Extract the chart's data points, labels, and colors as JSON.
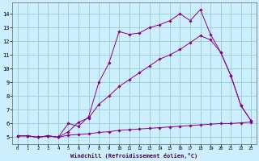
{
  "xlabel": "Windchill (Refroidissement éolien,°C)",
  "bg_color": "#cceeff",
  "line_color": "#880088",
  "grid_color": "#99cccc",
  "xlim": [
    -0.5,
    23.5
  ],
  "ylim": [
    4.5,
    14.8
  ],
  "xticks": [
    0,
    1,
    2,
    3,
    4,
    5,
    6,
    7,
    8,
    9,
    10,
    11,
    12,
    13,
    14,
    15,
    16,
    17,
    18,
    19,
    20,
    21,
    22,
    23
  ],
  "yticks": [
    5,
    6,
    7,
    8,
    9,
    10,
    11,
    12,
    13,
    14
  ],
  "line1_x": [
    0,
    1,
    2,
    3,
    4,
    5,
    6,
    7,
    8,
    9,
    10,
    11,
    12,
    13,
    14,
    15,
    16,
    17,
    18,
    19,
    20,
    21,
    22,
    23
  ],
  "line1_y": [
    5.1,
    5.1,
    5.0,
    5.1,
    5.0,
    6.0,
    5.8,
    6.5,
    9.0,
    10.4,
    12.7,
    12.5,
    12.6,
    13.0,
    13.2,
    13.5,
    14.0,
    13.5,
    14.3,
    12.5,
    11.2,
    9.5,
    7.3,
    6.2
  ],
  "line2_x": [
    0,
    1,
    2,
    3,
    4,
    5,
    6,
    7,
    8,
    9,
    10,
    11,
    12,
    13,
    14,
    15,
    16,
    17,
    18,
    19,
    20,
    21,
    22,
    23
  ],
  "line2_y": [
    5.1,
    5.1,
    5.0,
    5.1,
    5.0,
    5.4,
    6.1,
    6.4,
    7.4,
    8.0,
    8.7,
    9.2,
    9.7,
    10.2,
    10.7,
    11.0,
    11.4,
    11.9,
    12.4,
    12.1,
    11.2,
    9.5,
    7.3,
    6.2
  ],
  "line3_x": [
    0,
    1,
    2,
    3,
    4,
    5,
    6,
    7,
    8,
    9,
    10,
    11,
    12,
    13,
    14,
    15,
    16,
    17,
    18,
    19,
    20,
    21,
    22,
    23
  ],
  "line3_y": [
    5.1,
    5.1,
    5.0,
    5.1,
    5.0,
    5.15,
    5.2,
    5.25,
    5.35,
    5.4,
    5.5,
    5.55,
    5.6,
    5.65,
    5.7,
    5.75,
    5.8,
    5.85,
    5.9,
    5.95,
    6.0,
    6.0,
    6.05,
    6.1
  ]
}
